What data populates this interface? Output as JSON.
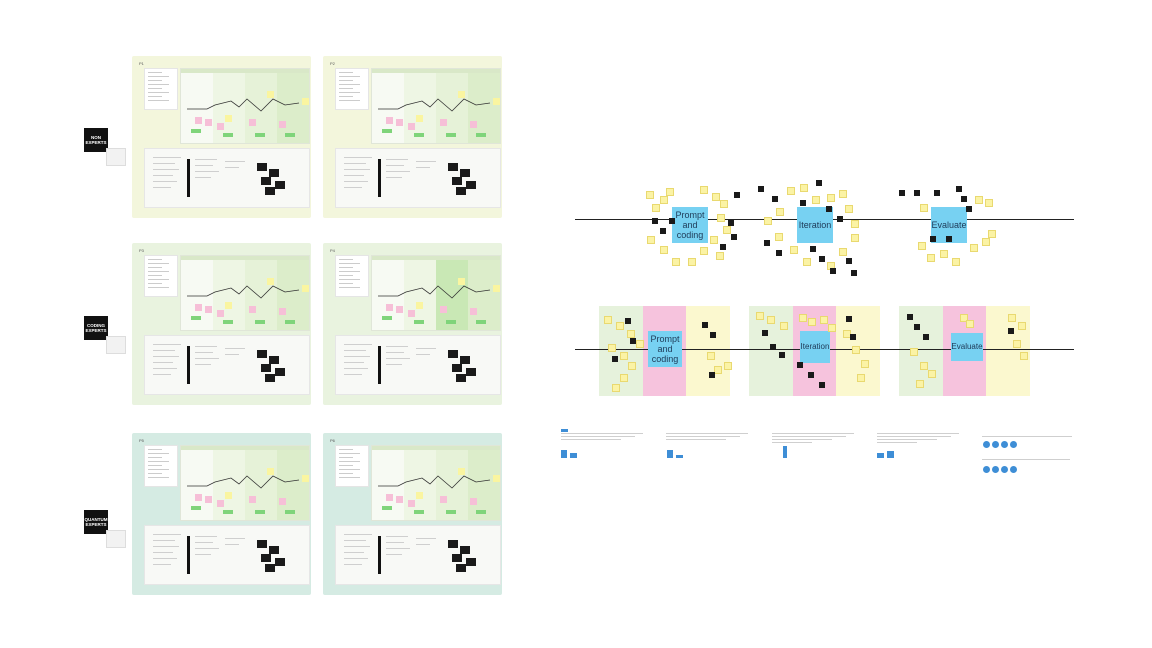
{
  "canvas": {
    "background": "#ffffff"
  },
  "groups": [
    {
      "label_line1": "NON",
      "label_line2": "EXPERTS",
      "panel_color": "#f3f6dc",
      "panels": [
        {
          "id": "P1"
        },
        {
          "id": "P2"
        }
      ]
    },
    {
      "label_line1": "CODING",
      "label_line2": "EXPERTS",
      "panel_color": "#e9f3df",
      "panels": [
        {
          "id": "P3"
        },
        {
          "id": "P4"
        }
      ]
    },
    {
      "label_line1": "QUANTUM",
      "label_line2": "EXPERTS",
      "panel_color": "#d5ebe3",
      "panels": [
        {
          "id": "P5"
        },
        {
          "id": "P6"
        }
      ]
    }
  ],
  "phases": {
    "prompt": "Prompt and coding",
    "iteration": "Iteration",
    "evaluate": "Evaluate"
  },
  "colors": {
    "sticky_yellow": "#faf5a0",
    "sticky_pink": "#f6bfd7",
    "sticky_green": "#7fd47a",
    "phase_blue": "#77d1f2",
    "accent_blue": "#3e8ed6"
  },
  "icons": [
    "blue-circle-icon"
  ]
}
